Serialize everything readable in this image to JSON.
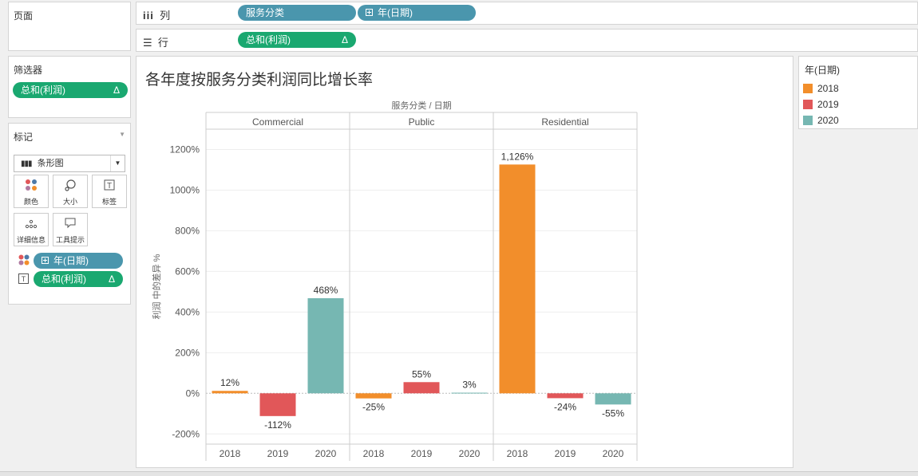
{
  "pages_panel": {
    "title": "页面"
  },
  "filters_panel": {
    "title": "筛选器",
    "pill": {
      "label": "总和(利润)",
      "delta": "Δ"
    }
  },
  "marks_panel": {
    "title": "标记",
    "mark_type": "条形图",
    "buttons": {
      "color": "颜色",
      "size": "大小",
      "label": "标签",
      "detail": "详细信息",
      "tooltip": "工具提示"
    },
    "fields": [
      {
        "label": "年(日期)",
        "kind": "color"
      },
      {
        "label": "总和(利润)",
        "kind": "label",
        "delta": "Δ"
      }
    ]
  },
  "shelves": {
    "columns": {
      "label": "列",
      "pills": [
        "服务分类",
        "年(日期)"
      ]
    },
    "rows": {
      "label": "行",
      "pill": "总和(利润)",
      "delta": "Δ"
    }
  },
  "legend": {
    "title": "年(日期)",
    "items": [
      {
        "label": "2018",
        "color": "#f28e2b"
      },
      {
        "label": "2019",
        "color": "#e15759"
      },
      {
        "label": "2020",
        "color": "#76b7b2"
      }
    ]
  },
  "chart_data": {
    "type": "bar",
    "title": "各年度按服务分类利润同比增长率",
    "column_header": "服务分类 / 日期",
    "ylabel": "利润 中的差异 %",
    "ylim": [
      -250,
      1300
    ],
    "yticks": [
      -200,
      0,
      200,
      400,
      600,
      800,
      1000,
      1200
    ],
    "ytick_labels": [
      "-200%",
      "0%",
      "200%",
      "400%",
      "600%",
      "800%",
      "1000%",
      "1200%"
    ],
    "colors": {
      "2018": "#f28e2b",
      "2019": "#e15759",
      "2020": "#76b7b2"
    },
    "groups": [
      {
        "name": "Commercial",
        "bars": [
          {
            "year": "2018",
            "value": 12,
            "label": "12%"
          },
          {
            "year": "2019",
            "value": -112,
            "label": "-112%"
          },
          {
            "year": "2020",
            "value": 468,
            "label": "468%"
          }
        ]
      },
      {
        "name": "Public",
        "bars": [
          {
            "year": "2018",
            "value": -25,
            "label": "-25%"
          },
          {
            "year": "2019",
            "value": 55,
            "label": "55%"
          },
          {
            "year": "2020",
            "value": 3,
            "label": "3%"
          }
        ]
      },
      {
        "name": "Residential",
        "bars": [
          {
            "year": "2018",
            "value": 1126,
            "label": "1,126%"
          },
          {
            "year": "2019",
            "value": -24,
            "label": "-24%"
          },
          {
            "year": "2020",
            "value": -55,
            "label": "-55%"
          }
        ]
      }
    ]
  }
}
